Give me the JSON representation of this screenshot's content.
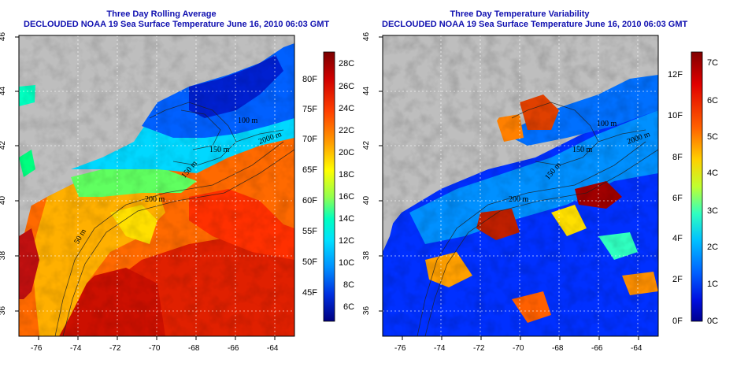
{
  "left": {
    "title": "Three Day Rolling Average",
    "subtitle": "DECLOUDED NOAA 19 Sea Surface Temperature June 16, 2010 06:03 GMT",
    "colorbar_c": [
      "28C",
      "26C",
      "24C",
      "22C",
      "20C",
      "18C",
      "16C",
      "14C",
      "12C",
      "10C",
      "8C",
      "6C"
    ],
    "colorbar_f": [
      "80F",
      "75F",
      "70F",
      "65F",
      "60F",
      "55F",
      "50F",
      "45F"
    ],
    "contour_labels": [
      "50 m",
      "200 m",
      "150 m",
      "150 m",
      "100 m",
      "2000 m"
    ],
    "colors": [
      "#7a0000",
      "#c00000",
      "#ff2000",
      "#ff7000",
      "#ffc000",
      "#ffff00",
      "#90ff40",
      "#00ffa0",
      "#00e0ff",
      "#0090ff",
      "#0040ff",
      "#0000c0",
      "#000080"
    ]
  },
  "right": {
    "title": "Three Day Temperature Variability",
    "subtitle": "DECLOUDED NOAA 19 Sea Surface Temperature June 16, 2010 06:03 GMT",
    "colorbar_c": [
      "7C",
      "6C",
      "5C",
      "4C",
      "3C",
      "2C",
      "1C",
      "0C"
    ],
    "colorbar_f": [
      "12F",
      "10F",
      "8F",
      "6F",
      "4F",
      "2F",
      "0F"
    ],
    "contour_labels": [
      "200 m",
      "150 m",
      "100 m",
      "150 m",
      "2000 m"
    ]
  },
  "axes": {
    "x_ticks": [
      "-76",
      "-74",
      "-72",
      "-70",
      "-68",
      "-66",
      "-64"
    ],
    "y_ticks": [
      "46",
      "44",
      "42",
      "40",
      "38",
      "36"
    ]
  },
  "land_color": "#bebebe"
}
